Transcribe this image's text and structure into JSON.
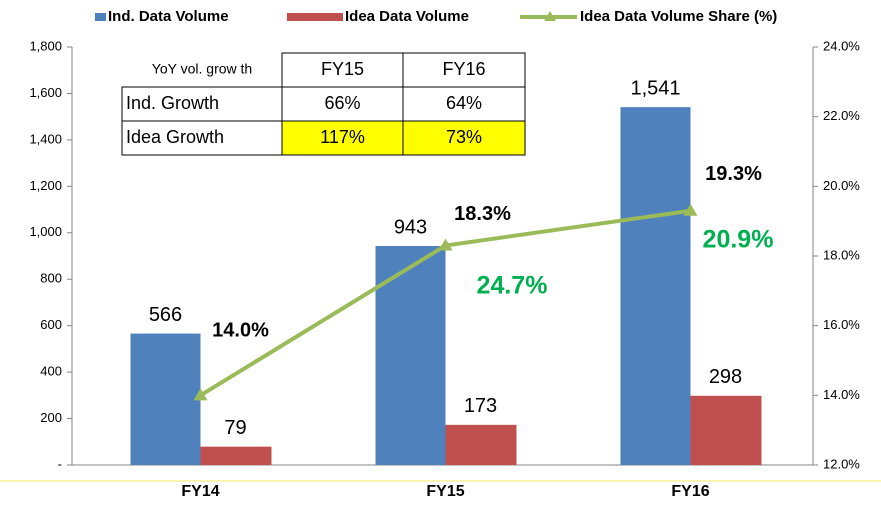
{
  "chart_data": {
    "type": "bar_line",
    "categories": [
      "FY14",
      "FY15",
      "FY16"
    ],
    "series": [
      {
        "name": "Ind. Data Volume",
        "color": "#4f81bd",
        "type": "bar",
        "values": [
          566,
          943,
          1541
        ],
        "value_labels": [
          "566",
          "943",
          "1,541"
        ]
      },
      {
        "name": "Idea Data Volume",
        "color": "#c0504d",
        "type": "bar",
        "values": [
          79,
          173,
          298
        ]
      },
      {
        "name": "Idea Data Volume Share (%)",
        "color": "#9bbb59",
        "type": "line",
        "axis": "y2",
        "values": [
          14.0,
          18.3,
          19.3
        ],
        "value_labels": [
          "14.0%",
          "18.3%",
          "19.3%"
        ]
      }
    ],
    "ylim": [
      0,
      1800
    ],
    "yticks": [
      {
        "value": 0,
        "label": "-"
      },
      200,
      400,
      600,
      800,
      {
        "value": 1000,
        "label": "1,000"
      },
      {
        "value": 1200,
        "label": "1,200"
      },
      {
        "value": 1400,
        "label": "1,400"
      },
      {
        "value": 1600,
        "label": "1,600"
      },
      {
        "value": 1800,
        "label": "1,800"
      }
    ],
    "y2lim": [
      12,
      24
    ],
    "y2ticks": [
      {
        "value": 12,
        "label": "12.0%"
      },
      {
        "value": 14,
        "label": "14.0%"
      },
      {
        "value": 16,
        "label": "16.0%"
      },
      {
        "value": 18,
        "label": "18.0%"
      },
      {
        "value": 20,
        "label": "20.0%"
      },
      {
        "value": 22,
        "label": "22.0%"
      },
      {
        "value": 24,
        "label": "24.0%"
      }
    ],
    "annotations": [
      {
        "text": "24.7%",
        "color": "#00b050"
      },
      {
        "text": "20.9%",
        "color": "#00b050"
      }
    ],
    "table": {
      "header": [
        "YoY vol. grow th",
        "FY15",
        "FY16"
      ],
      "rows": [
        [
          "Ind. Growth",
          "66%",
          "64%"
        ],
        [
          "Idea Growth",
          "117%",
          "73%"
        ]
      ],
      "highlight_color": "#ffff00"
    }
  }
}
